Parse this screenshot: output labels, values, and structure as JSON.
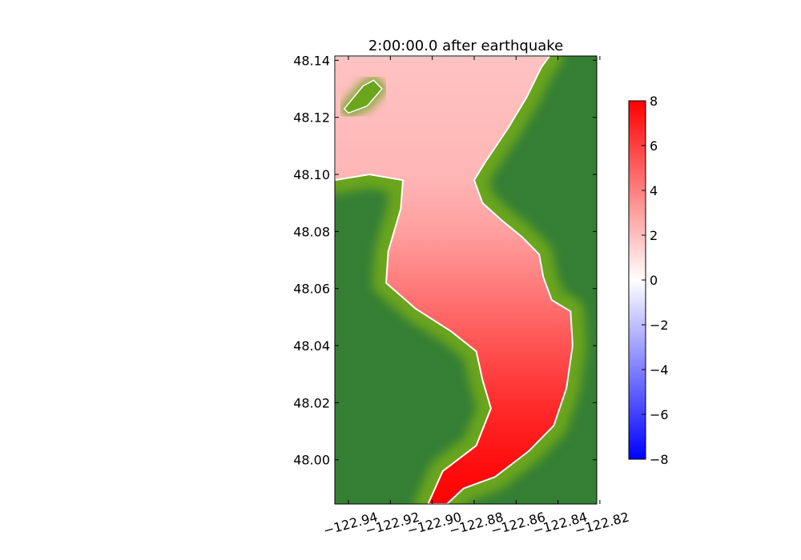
{
  "chart_data": {
    "type": "heatmap",
    "title": "2:00:00.0 after earthquake",
    "xlabel": "",
    "ylabel": "",
    "xlim": [
      -122.9465,
      -122.8215
    ],
    "ylim": [
      47.9845,
      48.1415
    ],
    "xticks": [
      -122.94,
      -122.92,
      -122.9,
      -122.88,
      -122.86,
      -122.84,
      -122.82
    ],
    "xtick_labels": [
      "−122.94",
      "−122.92",
      "−122.90",
      "−122.88",
      "−122.86",
      "−122.84",
      "−122.82"
    ],
    "yticks": [
      48.0,
      48.02,
      48.04,
      48.06,
      48.08,
      48.1,
      48.12,
      48.14
    ],
    "ytick_labels": [
      "48.00",
      "48.02",
      "48.04",
      "48.06",
      "48.08",
      "48.10",
      "48.12",
      "48.14"
    ],
    "colorbar": {
      "vmin": -8,
      "vmax": 8,
      "ticks": [
        -8,
        -6,
        -4,
        -2,
        0,
        2,
        4,
        6,
        8
      ],
      "tick_labels": [
        "−8",
        "−6",
        "−4",
        "−2",
        "0",
        "2",
        "4",
        "6",
        "8"
      ],
      "colors": [
        "#0000ff",
        "#ffffff",
        "#ff0000"
      ]
    },
    "land_colors": [
      "#357f35",
      "#6aa51c"
    ],
    "water_region": {
      "outline": [
        [
          -122.9465,
          48.1415
        ],
        [
          -122.844,
          48.1415
        ],
        [
          -122.848,
          48.1375
        ],
        [
          -122.855,
          48.127
        ],
        [
          -122.864,
          48.116
        ],
        [
          -122.875,
          48.104
        ],
        [
          -122.88,
          48.098
        ],
        [
          -122.876,
          48.09
        ],
        [
          -122.867,
          48.084
        ],
        [
          -122.857,
          48.078
        ],
        [
          -122.849,
          48.072
        ],
        [
          -122.847,
          48.064
        ],
        [
          -122.843,
          48.056
        ],
        [
          -122.834,
          48.052
        ],
        [
          -122.833,
          48.04
        ],
        [
          -122.836,
          48.025
        ],
        [
          -122.842,
          48.012
        ],
        [
          -122.854,
          48.003
        ],
        [
          -122.87,
          47.994
        ],
        [
          -122.885,
          47.99
        ],
        [
          -122.893,
          47.9845
        ],
        [
          -122.902,
          47.9845
        ],
        [
          -122.895,
          47.996
        ],
        [
          -122.879,
          48.005
        ],
        [
          -122.872,
          48.018
        ],
        [
          -122.876,
          48.028
        ],
        [
          -122.879,
          48.038
        ],
        [
          -122.891,
          48.045
        ],
        [
          -122.908,
          48.053
        ],
        [
          -122.922,
          48.062
        ],
        [
          -122.921,
          48.073
        ],
        [
          -122.915,
          48.088
        ],
        [
          -122.914,
          48.098
        ],
        [
          -122.93,
          48.1
        ],
        [
          -122.9465,
          48.098
        ]
      ],
      "island": [
        [
          -122.942,
          48.123
        ],
        [
          -122.933,
          48.131
        ],
        [
          -122.928,
          48.133
        ],
        [
          -122.924,
          48.13
        ],
        [
          -122.931,
          48.124
        ],
        [
          -122.94,
          48.1215
        ]
      ],
      "values_along_channel": [
        {
          "lat": 48.14,
          "value": 1.9
        },
        {
          "lat": 48.1,
          "value": 2.3
        },
        {
          "lat": 48.08,
          "value": 3.0
        },
        {
          "lat": 48.06,
          "value": 4.2
        },
        {
          "lat": 48.04,
          "value": 5.4
        },
        {
          "lat": 48.02,
          "value": 6.6
        },
        {
          "lat": 48.0,
          "value": 7.5
        },
        {
          "lat": 47.985,
          "value": 8.0
        }
      ]
    },
    "grid": false
  }
}
